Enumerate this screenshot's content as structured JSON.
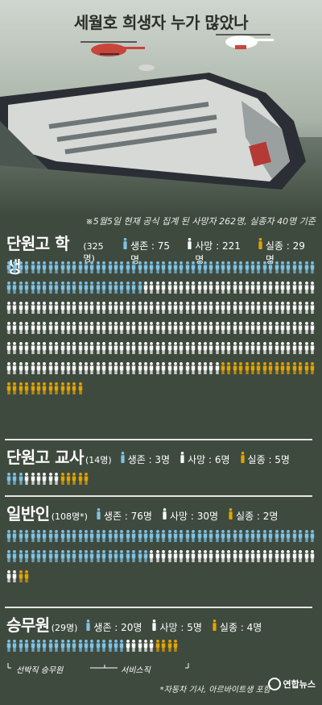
{
  "title": "세월호 희생자 누가 많았나",
  "note": "※5월5일 현재 공식 집계 된 사망자 262명, 실종자 40명 기준",
  "colors": {
    "survived": "#7ec3e6",
    "dead": "#ffffff",
    "missing": "#e2a400"
  },
  "groups": [
    {
      "name": "단원고 학생",
      "count": "(325명)",
      "survived": 75,
      "dead": 221,
      "missing": 29,
      "labels": {
        "survived": "생존 : 75명",
        "dead": "사망 : 221명",
        "missing": "실종 : 29명"
      }
    },
    {
      "name": "단원고 교사",
      "count": "(14명)",
      "survived": 3,
      "dead": 6,
      "missing": 5,
      "labels": {
        "survived": "생존 : 3명",
        "dead": "사망 : 6명",
        "missing": "실종 : 5명"
      }
    },
    {
      "name": "일반인",
      "count": "(108명*)",
      "survived": 76,
      "dead": 30,
      "missing": 2,
      "labels": {
        "survived": "생존 : 76명",
        "dead": "사망 : 30명",
        "missing": "실종 : 2명"
      }
    },
    {
      "name": "승무원",
      "count": "(29명)",
      "survived": 20,
      "dead": 5,
      "missing": 4,
      "labels": {
        "survived": "생존 : 20명",
        "dead": "사망 : 5명",
        "missing": "실종 : 4명"
      }
    }
  ],
  "crew_sub": {
    "left": "선박직 승무원",
    "right": "서비스직"
  },
  "footnote": "*자동차 기사, 아르바이트생 포함",
  "logo": "연합뉴스"
}
